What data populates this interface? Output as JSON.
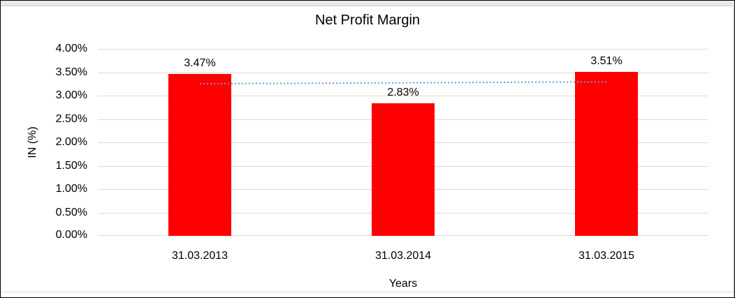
{
  "chart_data": {
    "type": "bar",
    "title": "Net Profit Margin",
    "xlabel": "Years",
    "ylabel": "IN (%)",
    "categories": [
      "31.03.2013",
      "31.03.2014",
      "31.03.2015"
    ],
    "values": [
      3.47,
      2.83,
      3.51
    ],
    "data_labels": [
      "3.47%",
      "2.83%",
      "3.51%"
    ],
    "ylim": [
      0,
      4
    ],
    "y_tick_step": 0.5,
    "y_tick_labels": [
      "0.00%",
      "0.50%",
      "1.00%",
      "1.50%",
      "2.00%",
      "2.50%",
      "3.00%",
      "3.50%",
      "4.00%"
    ],
    "grid": true,
    "legend": "none",
    "colors": {
      "bar": "#FF0000",
      "gridline": "#D9D9D9",
      "trendline": "#6B9BD5",
      "text": "#000000"
    },
    "trendline": {
      "type": "linear",
      "style": "dotted",
      "start_value": 3.25,
      "end_value": 3.29
    }
  }
}
